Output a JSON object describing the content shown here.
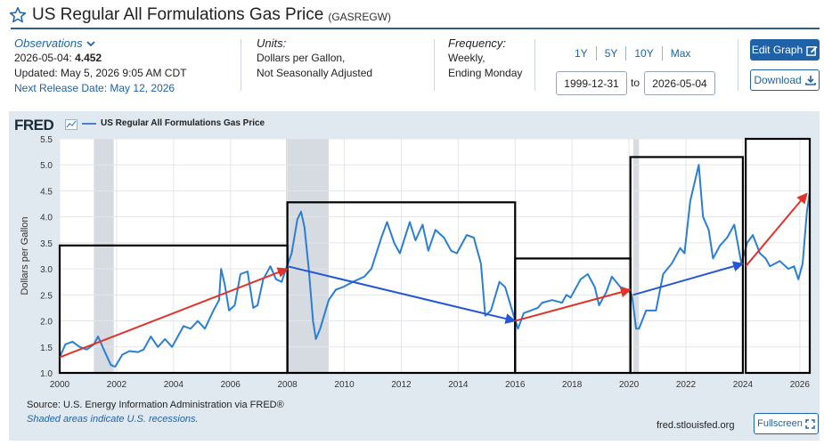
{
  "header": {
    "title": "US Regular All Formulations Gas Price",
    "series_code": "(GASREGW)"
  },
  "observations": {
    "heading": "Observations",
    "latest_date": "2026-05-04:",
    "latest_value": "4.452",
    "updated": "Updated: May 5, 2026 9:05 AM CDT",
    "next_release": "Next Release Date: May 12, 2026"
  },
  "units": {
    "heading": "Units:",
    "line1": "Dollars per Gallon,",
    "line2": "Not Seasonally Adjusted"
  },
  "frequency": {
    "heading": "Frequency:",
    "line1": "Weekly,",
    "line2": "Ending Monday"
  },
  "range": {
    "links": [
      "1Y",
      "5Y",
      "10Y",
      "Max"
    ],
    "start": "1999-12-31",
    "to_label": "to",
    "end": "2026-05-04"
  },
  "buttons": {
    "edit": "Edit Graph",
    "download": "Download",
    "fullscreen": "Fullscreen"
  },
  "footer": {
    "source": "Source: U.S. Energy Information Administration via FRED®",
    "shading_note": "Shaded areas indicate U.S. recessions.",
    "credit": "fred.stlouisfed.org"
  },
  "logo": "FRED",
  "colors": {
    "series": "#2a7fd4",
    "panel": "#e1e9f0",
    "recession": "#d5dbe1",
    "link": "#1f62a8",
    "arrow_up": "#e0332a",
    "arrow_down": "#2457d6",
    "annotation_box": "#000000"
  },
  "icons": {
    "star": "star-outline-icon",
    "chevron": "chevron-down-icon",
    "edit": "pencil-square-icon",
    "download": "download-icon",
    "fullscreen": "fullscreen-icon",
    "sparkline": "sparkline-icon"
  },
  "chart_data": {
    "type": "line",
    "title": "",
    "xlabel": "",
    "ylabel": "Dollars per Gallon",
    "legend": [
      "US Regular All Formulations Gas Price"
    ],
    "xlim": [
      2000.0,
      2026.35
    ],
    "ylim": [
      1.0,
      5.5
    ],
    "x_ticks": [
      "2000",
      "2002",
      "2004",
      "2006",
      "2008",
      "2010",
      "2012",
      "2014",
      "2016",
      "2018",
      "2020",
      "2022",
      "2024",
      "2026"
    ],
    "y_ticks": [
      "1.0",
      "1.5",
      "2.0",
      "2.5",
      "3.0",
      "3.5",
      "4.0",
      "4.5",
      "5.0",
      "5.5"
    ],
    "grid": true,
    "recessions": [
      [
        2001.2,
        2001.9
      ],
      [
        2007.95,
        2009.45
      ],
      [
        2020.15,
        2020.35
      ]
    ],
    "series": [
      {
        "name": "US Regular All Formulations Gas Price",
        "x": [
          2000.0,
          2000.2,
          2000.45,
          2000.7,
          2000.95,
          2001.2,
          2001.35,
          2001.55,
          2001.8,
          2001.95,
          2002.2,
          2002.45,
          2002.75,
          2002.95,
          2003.2,
          2003.45,
          2003.7,
          2003.95,
          2004.35,
          2004.6,
          2004.85,
          2005.1,
          2005.4,
          2005.6,
          2005.67,
          2005.8,
          2005.95,
          2006.15,
          2006.35,
          2006.6,
          2006.8,
          2006.95,
          2007.15,
          2007.4,
          2007.6,
          2007.8,
          2007.95,
          2008.15,
          2008.35,
          2008.48,
          2008.6,
          2008.75,
          2008.9,
          2009.0,
          2009.15,
          2009.45,
          2009.7,
          2009.95,
          2010.3,
          2010.7,
          2010.95,
          2011.3,
          2011.5,
          2011.75,
          2011.95,
          2012.3,
          2012.5,
          2012.75,
          2012.95,
          2013.2,
          2013.5,
          2013.75,
          2013.95,
          2014.3,
          2014.55,
          2014.8,
          2014.95,
          2015.15,
          2015.45,
          2015.65,
          2015.95,
          2016.1,
          2016.3,
          2016.55,
          2016.8,
          2016.95,
          2017.3,
          2017.65,
          2017.8,
          2017.95,
          2018.3,
          2018.55,
          2018.8,
          2018.95,
          2019.2,
          2019.4,
          2019.7,
          2019.95,
          2020.1,
          2020.25,
          2020.35,
          2020.6,
          2020.95,
          2021.2,
          2021.5,
          2021.8,
          2021.95,
          2022.15,
          2022.45,
          2022.6,
          2022.8,
          2022.95,
          2023.2,
          2023.45,
          2023.7,
          2023.95,
          2024.15,
          2024.35,
          2024.6,
          2024.8,
          2024.95,
          2025.3,
          2025.6,
          2025.8,
          2025.95,
          2026.1,
          2026.25,
          2026.34
        ],
        "values": [
          1.3,
          1.55,
          1.6,
          1.5,
          1.45,
          1.55,
          1.7,
          1.45,
          1.15,
          1.12,
          1.35,
          1.42,
          1.4,
          1.45,
          1.7,
          1.5,
          1.65,
          1.5,
          1.9,
          1.85,
          2.0,
          1.85,
          2.2,
          2.4,
          3.0,
          2.7,
          2.2,
          2.3,
          2.9,
          2.95,
          2.25,
          2.3,
          2.8,
          3.05,
          2.8,
          2.75,
          3.0,
          3.3,
          3.95,
          4.1,
          3.8,
          3.0,
          2.0,
          1.65,
          1.85,
          2.4,
          2.6,
          2.65,
          2.75,
          2.85,
          3.0,
          3.6,
          3.9,
          3.5,
          3.3,
          3.9,
          3.55,
          3.85,
          3.35,
          3.75,
          3.6,
          3.35,
          3.3,
          3.65,
          3.6,
          3.1,
          2.1,
          2.2,
          2.75,
          2.65,
          2.1,
          1.85,
          2.15,
          2.2,
          2.25,
          2.35,
          2.4,
          2.35,
          2.5,
          2.45,
          2.8,
          2.9,
          2.65,
          2.3,
          2.55,
          2.85,
          2.65,
          2.6,
          2.5,
          1.85,
          1.85,
          2.2,
          2.2,
          2.9,
          3.1,
          3.4,
          3.3,
          4.3,
          5.0,
          4.0,
          3.75,
          3.2,
          3.45,
          3.6,
          3.85,
          3.1,
          3.5,
          3.65,
          3.3,
          3.2,
          3.05,
          3.15,
          3.0,
          3.05,
          2.8,
          3.1,
          4.1,
          4.45
        ]
      }
    ],
    "annotations": {
      "boxes": [
        {
          "x0": 2000.0,
          "x1": 2008.0,
          "y0": 1.0,
          "y1": 3.45
        },
        {
          "x0": 2008.0,
          "x1": 2016.0,
          "y0": 1.0,
          "y1": 4.28
        },
        {
          "x0": 2016.0,
          "x1": 2020.05,
          "y0": 1.0,
          "y1": 3.2
        },
        {
          "x0": 2020.05,
          "x1": 2024.0,
          "y0": 1.0,
          "y1": 5.15
        },
        {
          "x0": 2024.1,
          "x1": 2026.35,
          "y0": 1.0,
          "y1": 5.5
        }
      ],
      "arrows": [
        {
          "from": [
            2000.0,
            1.3
          ],
          "to": [
            2008.0,
            3.0
          ],
          "color": "red"
        },
        {
          "from": [
            2008.0,
            3.05
          ],
          "to": [
            2016.0,
            2.0
          ],
          "color": "blue"
        },
        {
          "from": [
            2016.0,
            2.0
          ],
          "to": [
            2020.05,
            2.6
          ],
          "color": "red"
        },
        {
          "from": [
            2020.15,
            2.5
          ],
          "to": [
            2024.0,
            3.1
          ],
          "color": "blue"
        },
        {
          "from": [
            2024.1,
            3.05
          ],
          "to": [
            2026.25,
            4.45
          ],
          "color": "red"
        }
      ]
    }
  }
}
